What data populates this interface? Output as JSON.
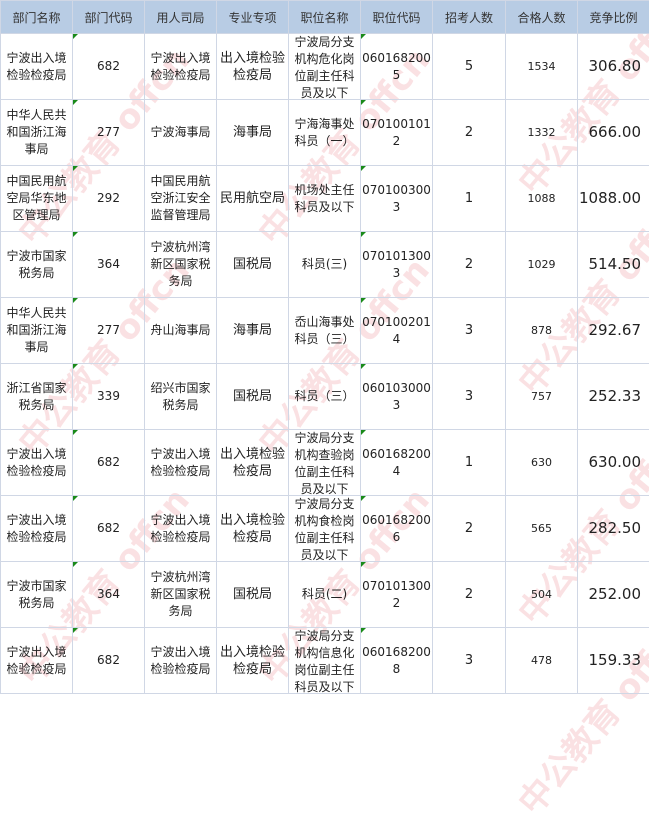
{
  "headers": [
    "部门名称",
    "部门代码",
    "用人司局",
    "专业专项",
    "职位名称",
    "职位代码",
    "招考人数",
    "合格人数",
    "竞争比例"
  ],
  "rows": [
    [
      "宁波出入境检验检疫局",
      "682",
      "宁波出入境检验检疫局",
      "出入境检验检疫局",
      "宁波局分支机构危化岗位副主任科员及以下",
      "0601682005",
      "5",
      "1534",
      "306.80"
    ],
    [
      "中华人民共和国浙江海事局",
      "277",
      "宁波海事局",
      "海事局",
      "宁海海事处科员（一）",
      "0701001012",
      "2",
      "1332",
      "666.00"
    ],
    [
      "中国民用航空局华东地区管理局",
      "292",
      "中国民用航空浙江安全监督管理局",
      "民用航空局",
      "机场处主任科员及以下",
      "0701003003",
      "1",
      "1088",
      "1088.00"
    ],
    [
      "宁波市国家税务局",
      "364",
      "宁波杭州湾新区国家税务局",
      "国税局",
      "科员(三)",
      "0701013003",
      "2",
      "1029",
      "514.50"
    ],
    [
      "中华人民共和国浙江海事局",
      "277",
      "舟山海事局",
      "海事局",
      "岙山海事处科员（三）",
      "0701002014",
      "3",
      "878",
      "292.67"
    ],
    [
      "浙江省国家税务局",
      "339",
      "绍兴市国家税务局",
      "国税局",
      "科员（三）",
      "0601030003",
      "3",
      "757",
      "252.33"
    ],
    [
      "宁波出入境检验检疫局",
      "682",
      "宁波出入境检验检疫局",
      "出入境检验检疫局",
      "宁波局分支机构查验岗位副主任科员及以下",
      "0601682004",
      "1",
      "630",
      "630.00"
    ],
    [
      "宁波出入境检验检疫局",
      "682",
      "宁波出入境检验检疫局",
      "出入境检验检疫局",
      "宁波局分支机构食检岗位副主任科员及以下",
      "0601682006",
      "2",
      "565",
      "282.50"
    ],
    [
      "宁波市国家税务局",
      "364",
      "宁波杭州湾新区国家税务局",
      "国税局",
      "科员(二)",
      "0701013002",
      "2",
      "504",
      "252.00"
    ],
    [
      "宁波出入境检验检疫局",
      "682",
      "宁波出入境检验检疫局",
      "出入境检验检疫局",
      "宁波局分支机构信息化岗位副主任科员及以下",
      "0601682008",
      "3",
      "478",
      "159.33"
    ]
  ],
  "watermark": "中公教育 offcn",
  "colors": {
    "header_bg": "#b8cce4",
    "grid": "#d0d7e5",
    "comment_marker": "#1a8a1a"
  }
}
